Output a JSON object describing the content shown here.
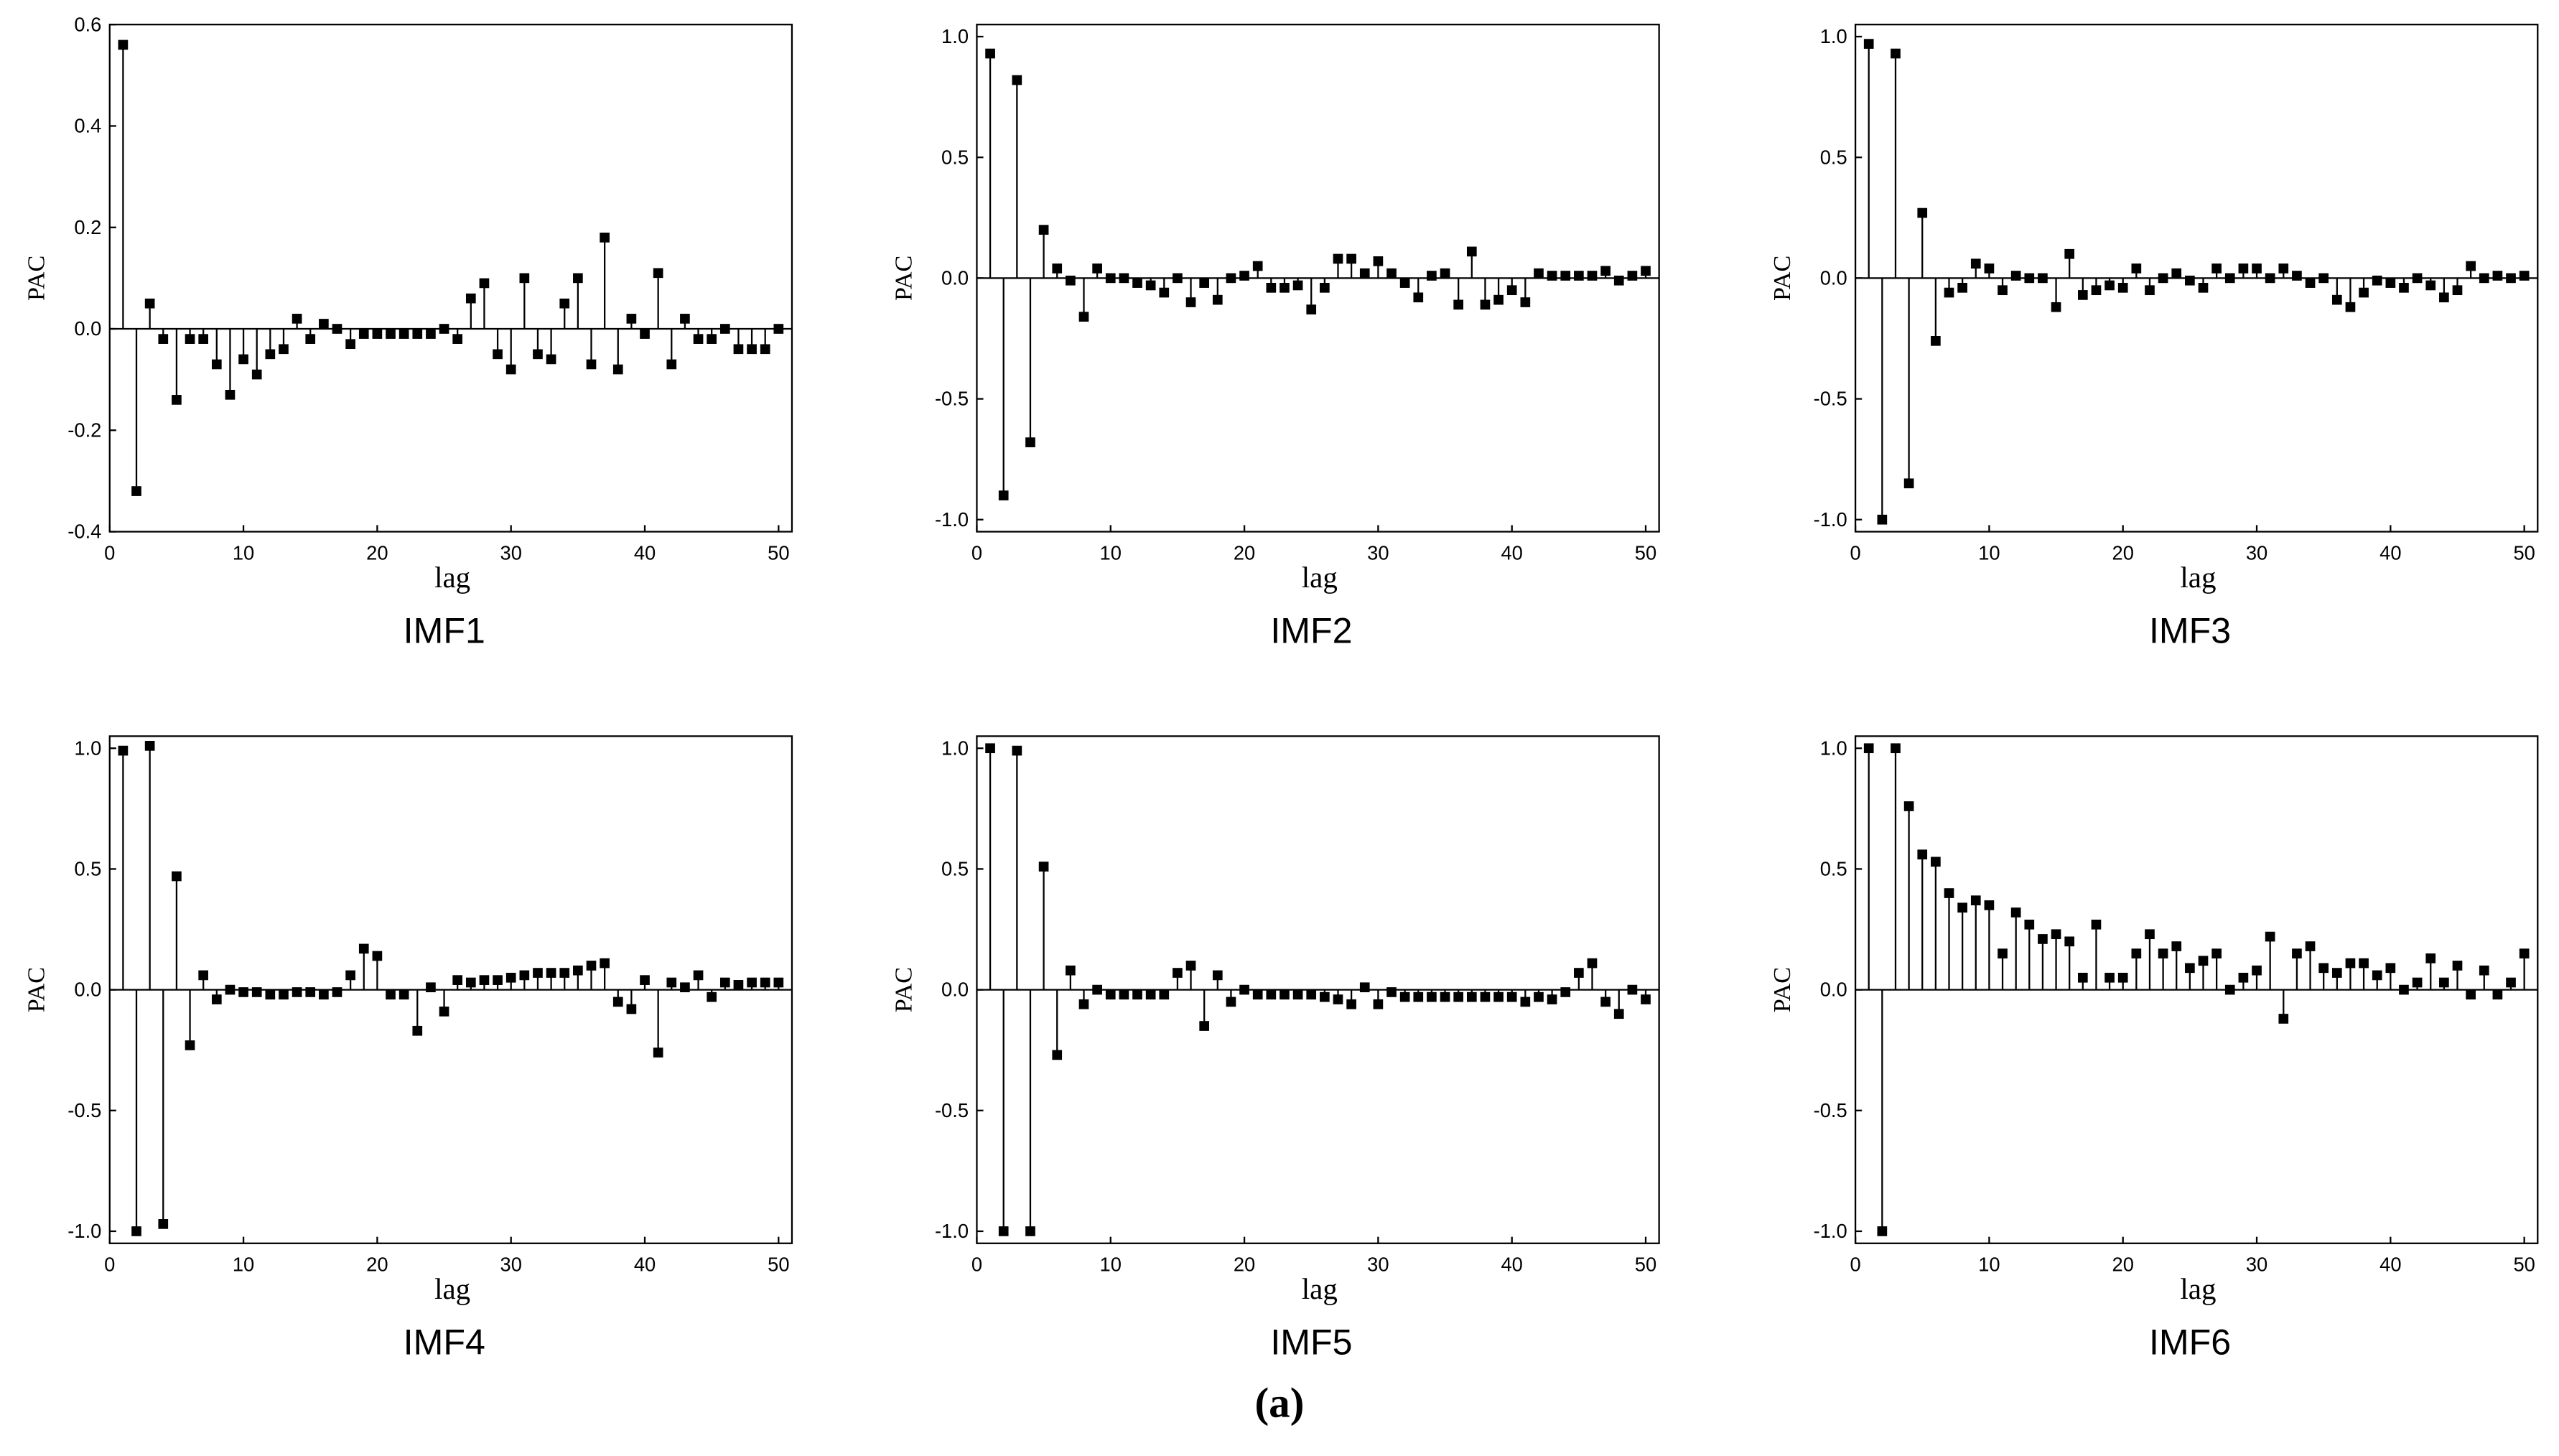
{
  "chart_data": [
    {
      "type": "stem",
      "title": "IMF1",
      "xlabel": "lag",
      "ylabel": "PAC",
      "x": [
        1,
        2,
        3,
        4,
        5,
        6,
        7,
        8,
        9,
        10,
        11,
        12,
        13,
        14,
        15,
        16,
        17,
        18,
        19,
        20,
        21,
        22,
        23,
        24,
        25,
        26,
        27,
        28,
        29,
        30,
        31,
        32,
        33,
        34,
        35,
        36,
        37,
        38,
        39,
        40,
        41,
        42,
        43,
        44,
        45,
        46,
        47,
        48,
        49,
        50
      ],
      "values": [
        0.56,
        -0.32,
        0.05,
        -0.02,
        -0.14,
        -0.02,
        -0.02,
        -0.07,
        -0.13,
        -0.06,
        -0.09,
        -0.05,
        -0.04,
        0.02,
        -0.02,
        0.01,
        0.0,
        -0.03,
        -0.01,
        -0.01,
        -0.01,
        -0.01,
        -0.01,
        -0.01,
        0.0,
        -0.02,
        0.06,
        0.09,
        -0.05,
        -0.08,
        0.1,
        -0.05,
        -0.06,
        0.05,
        0.1,
        -0.07,
        0.18,
        -0.08,
        0.02,
        -0.01,
        0.11,
        -0.07,
        0.02,
        -0.02,
        -0.02,
        0.0,
        -0.04,
        -0.04,
        -0.04,
        0.0
      ],
      "color": "#000000",
      "xlim": [
        0,
        51
      ],
      "xticks": [
        0,
        10,
        20,
        30,
        40,
        50
      ],
      "ylim": [
        -0.4,
        0.6
      ],
      "yticks": [
        -0.4,
        -0.2,
        {
          "value": 0,
          "label": "0.0"
        },
        0.2,
        0.4,
        0.6
      ]
    },
    {
      "type": "stem",
      "title": "IMF2",
      "xlabel": "lag",
      "ylabel": "PAC",
      "x": [
        1,
        2,
        3,
        4,
        5,
        6,
        7,
        8,
        9,
        10,
        11,
        12,
        13,
        14,
        15,
        16,
        17,
        18,
        19,
        20,
        21,
        22,
        23,
        24,
        25,
        26,
        27,
        28,
        29,
        30,
        31,
        32,
        33,
        34,
        35,
        36,
        37,
        38,
        39,
        40,
        41,
        42,
        43,
        44,
        45,
        46,
        47,
        48,
        49,
        50
      ],
      "values": [
        0.93,
        -0.9,
        0.82,
        -0.68,
        0.2,
        0.04,
        -0.01,
        -0.16,
        0.04,
        0.0,
        0.0,
        -0.02,
        -0.03,
        -0.06,
        0.0,
        -0.1,
        -0.02,
        -0.09,
        0.0,
        0.01,
        0.05,
        -0.04,
        -0.04,
        -0.03,
        -0.13,
        -0.04,
        0.08,
        0.08,
        0.02,
        0.07,
        0.02,
        -0.02,
        -0.08,
        0.01,
        0.02,
        -0.11,
        0.11,
        -0.11,
        -0.09,
        -0.05,
        -0.1,
        0.02,
        0.01,
        0.01,
        0.01,
        0.01,
        0.03,
        -0.01,
        0.01,
        0.03
      ],
      "color": "#000000",
      "xlim": [
        0,
        51
      ],
      "xticks": [
        0,
        10,
        20,
        30,
        40,
        50
      ],
      "ylim": [
        -1.05,
        1.05
      ],
      "yticks": [
        {
          "value": -1,
          "label": "-1.0"
        },
        -0.5,
        {
          "value": 0,
          "label": "0.0"
        },
        0.5,
        {
          "value": 1,
          "label": "1.0"
        }
      ]
    },
    {
      "type": "stem",
      "title": "IMF3",
      "xlabel": "lag",
      "ylabel": "PAC",
      "x": [
        1,
        2,
        3,
        4,
        5,
        6,
        7,
        8,
        9,
        10,
        11,
        12,
        13,
        14,
        15,
        16,
        17,
        18,
        19,
        20,
        21,
        22,
        23,
        24,
        25,
        26,
        27,
        28,
        29,
        30,
        31,
        32,
        33,
        34,
        35,
        36,
        37,
        38,
        39,
        40,
        41,
        42,
        43,
        44,
        45,
        46,
        47,
        48,
        49,
        50
      ],
      "values": [
        0.97,
        -1.0,
        0.93,
        -0.85,
        0.27,
        -0.26,
        -0.06,
        -0.04,
        0.06,
        0.04,
        -0.05,
        0.01,
        0.0,
        0.0,
        -0.12,
        0.1,
        -0.07,
        -0.05,
        -0.03,
        -0.04,
        0.04,
        -0.05,
        0.0,
        0.02,
        -0.01,
        -0.04,
        0.04,
        0.0,
        0.04,
        0.04,
        0.0,
        0.04,
        0.01,
        -0.02,
        0.0,
        -0.09,
        -0.12,
        -0.06,
        -0.01,
        -0.02,
        -0.04,
        0.0,
        -0.03,
        -0.08,
        -0.05,
        0.05,
        0.0,
        0.01,
        0.0,
        0.01
      ],
      "color": "#000000",
      "xlim": [
        0,
        51
      ],
      "xticks": [
        0,
        10,
        20,
        30,
        40,
        50
      ],
      "ylim": [
        -1.05,
        1.05
      ],
      "yticks": [
        {
          "value": -1,
          "label": "-1.0"
        },
        -0.5,
        {
          "value": 0,
          "label": "0.0"
        },
        0.5,
        {
          "value": 1,
          "label": "1.0"
        }
      ]
    },
    {
      "type": "stem",
      "title": "IMF4",
      "xlabel": "lag",
      "ylabel": "PAC",
      "x": [
        1,
        2,
        3,
        4,
        5,
        6,
        7,
        8,
        9,
        10,
        11,
        12,
        13,
        14,
        15,
        16,
        17,
        18,
        19,
        20,
        21,
        22,
        23,
        24,
        25,
        26,
        27,
        28,
        29,
        30,
        31,
        32,
        33,
        34,
        35,
        36,
        37,
        38,
        39,
        40,
        41,
        42,
        43,
        44,
        45,
        46,
        47,
        48,
        49,
        50
      ],
      "values": [
        0.99,
        -1.0,
        1.01,
        -0.97,
        0.47,
        -0.23,
        0.06,
        -0.04,
        0.0,
        -0.01,
        -0.01,
        -0.02,
        -0.02,
        -0.01,
        -0.01,
        -0.02,
        -0.01,
        0.06,
        0.17,
        0.14,
        -0.02,
        -0.02,
        -0.17,
        0.01,
        -0.09,
        0.04,
        0.03,
        0.04,
        0.04,
        0.05,
        0.06,
        0.07,
        0.07,
        0.07,
        0.08,
        0.1,
        0.11,
        -0.05,
        -0.08,
        0.04,
        -0.26,
        0.03,
        0.01,
        0.06,
        -0.03,
        0.03,
        0.02,
        0.03,
        0.03,
        0.03
      ],
      "color": "#000000",
      "xlim": [
        0,
        51
      ],
      "xticks": [
        0,
        10,
        20,
        30,
        40,
        50
      ],
      "ylim": [
        -1.05,
        1.05
      ],
      "yticks": [
        {
          "value": -1,
          "label": "-1.0"
        },
        -0.5,
        {
          "value": 0,
          "label": "0.0"
        },
        0.5,
        {
          "value": 1,
          "label": "1.0"
        }
      ]
    },
    {
      "type": "stem",
      "title": "IMF5",
      "xlabel": "lag",
      "ylabel": "PAC",
      "x": [
        1,
        2,
        3,
        4,
        5,
        6,
        7,
        8,
        9,
        10,
        11,
        12,
        13,
        14,
        15,
        16,
        17,
        18,
        19,
        20,
        21,
        22,
        23,
        24,
        25,
        26,
        27,
        28,
        29,
        30,
        31,
        32,
        33,
        34,
        35,
        36,
        37,
        38,
        39,
        40,
        41,
        42,
        43,
        44,
        45,
        46,
        47,
        48,
        49,
        50
      ],
      "values": [
        1.0,
        -1.0,
        0.99,
        -1.0,
        0.51,
        -0.27,
        0.08,
        -0.06,
        0.0,
        -0.02,
        -0.02,
        -0.02,
        -0.02,
        -0.02,
        0.07,
        0.1,
        -0.15,
        0.06,
        -0.05,
        0.0,
        -0.02,
        -0.02,
        -0.02,
        -0.02,
        -0.02,
        -0.03,
        -0.04,
        -0.06,
        0.01,
        -0.06,
        -0.01,
        -0.03,
        -0.03,
        -0.03,
        -0.03,
        -0.03,
        -0.03,
        -0.03,
        -0.03,
        -0.03,
        -0.05,
        -0.03,
        -0.04,
        -0.01,
        0.07,
        0.11,
        -0.05,
        -0.1,
        0.0,
        -0.04
      ],
      "color": "#000000",
      "xlim": [
        0,
        51
      ],
      "xticks": [
        0,
        10,
        20,
        30,
        40,
        50
      ],
      "ylim": [
        -1.05,
        1.05
      ],
      "yticks": [
        {
          "value": -1,
          "label": "-1.0"
        },
        -0.5,
        {
          "value": 0,
          "label": "0.0"
        },
        0.5,
        {
          "value": 1,
          "label": "1.0"
        }
      ]
    },
    {
      "type": "stem",
      "title": "IMF6",
      "xlabel": "lag",
      "ylabel": "PAC",
      "x": [
        1,
        2,
        3,
        4,
        5,
        6,
        7,
        8,
        9,
        10,
        11,
        12,
        13,
        14,
        15,
        16,
        17,
        18,
        19,
        20,
        21,
        22,
        23,
        24,
        25,
        26,
        27,
        28,
        29,
        30,
        31,
        32,
        33,
        34,
        35,
        36,
        37,
        38,
        39,
        40,
        41,
        42,
        43,
        44,
        45,
        46,
        47,
        48,
        49,
        50
      ],
      "values": [
        1.0,
        -1.0,
        1.0,
        0.76,
        0.56,
        0.53,
        0.4,
        0.34,
        0.37,
        0.35,
        0.15,
        0.32,
        0.27,
        0.21,
        0.23,
        0.2,
        0.05,
        0.27,
        0.05,
        0.05,
        0.15,
        0.23,
        0.15,
        0.18,
        0.09,
        0.12,
        0.15,
        0.0,
        0.05,
        0.08,
        0.22,
        -0.12,
        0.15,
        0.18,
        0.09,
        0.07,
        0.11,
        0.11,
        0.06,
        0.09,
        0.0,
        0.03,
        0.13,
        0.03,
        0.1,
        -0.02,
        0.08,
        -0.02,
        0.03,
        0.15
      ],
      "color": "#000000",
      "xlim": [
        0,
        51
      ],
      "xticks": [
        0,
        10,
        20,
        30,
        40,
        50
      ],
      "ylim": [
        -1.05,
        1.05
      ],
      "yticks": [
        {
          "value": -1,
          "label": "-1.0"
        },
        -0.5,
        {
          "value": 0,
          "label": "0.0"
        },
        0.5,
        {
          "value": 1,
          "label": "1.0"
        }
      ]
    }
  ],
  "caption": "(a)"
}
